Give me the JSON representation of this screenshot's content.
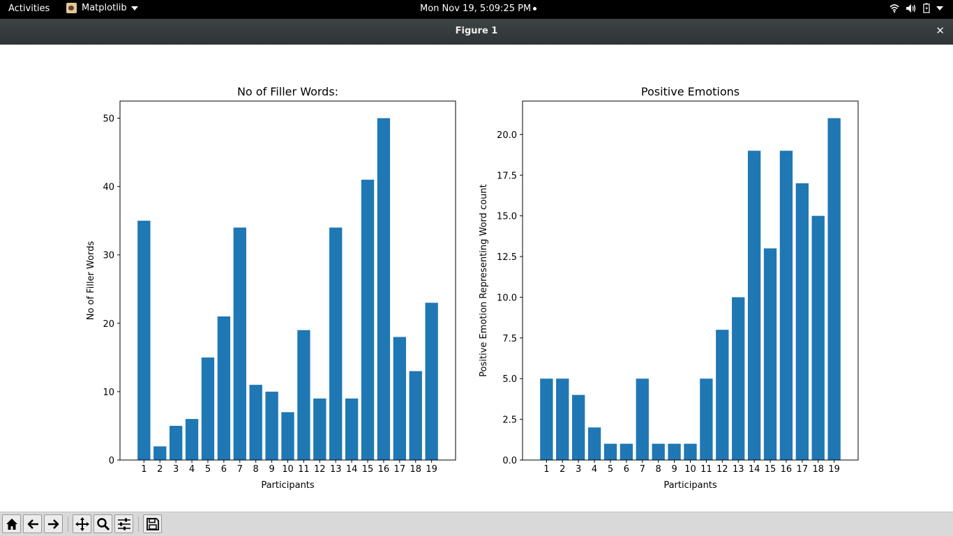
{
  "topbar": {
    "activities": "Activities",
    "app_name": "Matplotlib",
    "clock": "Mon Nov 19,  5:09:25 PM"
  },
  "window": {
    "title": "Figure 1",
    "close_glyph": "✕"
  },
  "icons": {
    "app": "matplotlib-icon",
    "wifi": "wifi-icon",
    "volume": "volume-icon",
    "battery": "battery-icon",
    "home": "home-icon",
    "back": "back-arrow-icon",
    "forward": "forward-arrow-icon",
    "pan": "pan-icon",
    "zoom": "zoom-icon",
    "configure": "configure-subplots-icon",
    "save": "save-icon"
  },
  "colors": {
    "bar": "#1f77b4",
    "topbar": "#000000",
    "titlebar": "#2e3436",
    "toolbar": "#d9d9d9"
  },
  "chart_data": [
    {
      "type": "bar",
      "title": "No of Filler Words:",
      "xlabel": "Participants",
      "ylabel": "No of Filler Words",
      "categories": [
        "1",
        "2",
        "3",
        "4",
        "5",
        "6",
        "7",
        "8",
        "9",
        "10",
        "11",
        "12",
        "13",
        "14",
        "15",
        "16",
        "17",
        "18",
        "19"
      ],
      "values": [
        35,
        2,
        5,
        6,
        15,
        21,
        34,
        11,
        10,
        7,
        19,
        9,
        34,
        9,
        41,
        50,
        18,
        13,
        23
      ],
      "xlim": [
        -1.5,
        19.5
      ],
      "ylim": [
        0,
        52.5
      ],
      "yticks": [
        0,
        10,
        20,
        30,
        40,
        50
      ],
      "ytick_labels": [
        "0",
        "10",
        "20",
        "30",
        "40",
        "50"
      ],
      "grid": false
    },
    {
      "type": "bar",
      "title": "Positive Emotions",
      "xlabel": "Participants",
      "ylabel": "Positive Emotion Representing Word count",
      "categories": [
        "1",
        "2",
        "3",
        "4",
        "5",
        "6",
        "7",
        "8",
        "9",
        "10",
        "11",
        "12",
        "13",
        "14",
        "15",
        "16",
        "17",
        "18",
        "19"
      ],
      "values": [
        5,
        5,
        4,
        2,
        1,
        1,
        5,
        1,
        1,
        1,
        5,
        8,
        10,
        19,
        13,
        19,
        17,
        15,
        21
      ],
      "xlim": [
        -1.5,
        19.5
      ],
      "ylim": [
        0,
        22.05
      ],
      "yticks": [
        0,
        2.5,
        5,
        7.5,
        10,
        12.5,
        15,
        17.5,
        20
      ],
      "ytick_labels": [
        "0.0",
        "2.5",
        "5.0",
        "7.5",
        "10.0",
        "12.5",
        "15.0",
        "17.5",
        "20.0"
      ],
      "grid": false
    }
  ]
}
